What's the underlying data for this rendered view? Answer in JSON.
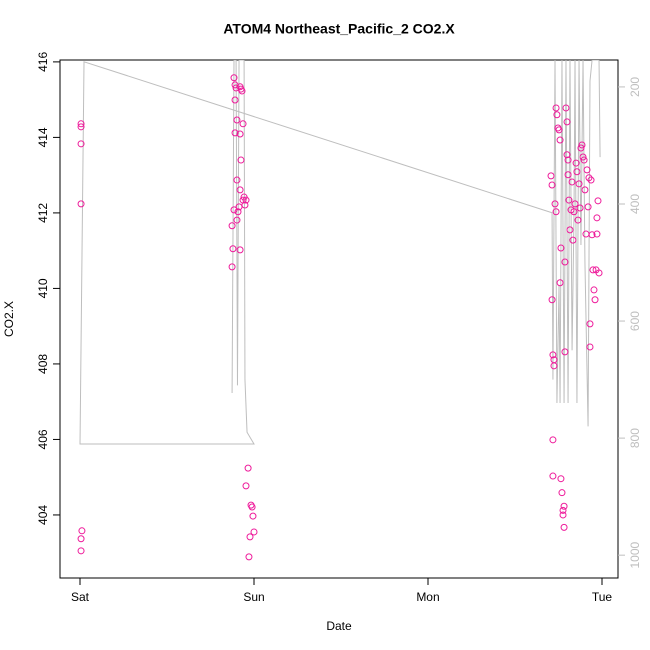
{
  "chart_data": {
    "type": "scatter",
    "title": "ATOM4 Northeast_Pacific_2 CO2.X",
    "x_label": "Date",
    "y_label": "CO2.X",
    "xlim": [
      -0.115,
      3.092
    ],
    "xticks": [
      {
        "value": 0,
        "label": "Sat"
      },
      {
        "value": 1,
        "label": "Sun"
      },
      {
        "value": 2,
        "label": "Mon"
      },
      {
        "value": 3,
        "label": "Tue"
      }
    ],
    "ylim": [
      402.33,
      416.05
    ],
    "yticks": [
      404,
      406,
      408,
      410,
      412,
      414,
      416
    ],
    "y2lim": [
      1039,
      154
    ],
    "y2ticks": [
      200,
      400,
      600,
      800,
      1000
    ],
    "series": [
      {
        "type": "scatter",
        "color": "#ee1a9a",
        "x": [
          0.006,
          0.006,
          0.006,
          0.006,
          0.011,
          0.006,
          0.006,
          0.885,
          0.891,
          0.897,
          0.92,
          0.925,
          0.931,
          0.891,
          0.902,
          0.937,
          0.891,
          0.92,
          0.925,
          0.902,
          0.92,
          0.885,
          0.908,
          0.937,
          0.948,
          0.943,
          0.874,
          0.879,
          0.92,
          0.874,
          0.902,
          0.914,
          0.954,
          0.966,
          0.954,
          0.983,
          0.989,
          0.994,
          0.977,
          1.0,
          0.971,
          2.713,
          2.718,
          2.724,
          2.724,
          2.718,
          2.718,
          2.707,
          2.713,
          2.73,
          2.736,
          2.736,
          2.741,
          2.747,
          2.753,
          2.759,
          2.759,
          2.764,
          2.764,
          2.77,
          2.776,
          2.776,
          2.782,
          2.782,
          2.787,
          2.787,
          2.793,
          2.799,
          2.799,
          2.805,
          2.805,
          2.81,
          2.816,
          2.822,
          2.828,
          2.833,
          2.839,
          2.845,
          2.851,
          2.856,
          2.862,
          2.868,
          2.874,
          2.879,
          2.885,
          2.891,
          2.897,
          2.902,
          2.908,
          2.914,
          2.92,
          2.925,
          2.931,
          2.931,
          2.937,
          2.943,
          2.948,
          2.954,
          2.96,
          2.966,
          2.971,
          2.977,
          2.983,
          2.971
        ],
        "values": [
          414.36,
          414.28,
          413.83,
          412.24,
          403.58,
          403.37,
          403.05,
          415.58,
          415.39,
          415.31,
          415.34,
          415.28,
          415.23,
          414.99,
          414.46,
          414.36,
          414.12,
          414.09,
          413.4,
          412.87,
          412.61,
          412.08,
          412.03,
          412.34,
          412.21,
          412.42,
          411.66,
          411.05,
          411.02,
          410.57,
          411.81,
          412.16,
          412.34,
          405.24,
          404.77,
          404.26,
          404.21,
          403.97,
          403.42,
          403.55,
          402.89,
          409.7,
          408.24,
          408.11,
          407.95,
          405.99,
          405.03,
          412.98,
          412.74,
          412.24,
          412.03,
          414.78,
          414.6,
          414.25,
          414.2,
          413.93,
          410.15,
          411.07,
          404.96,
          404.59,
          404.12,
          404.0,
          404.23,
          403.67,
          410.7,
          408.32,
          414.78,
          414.41,
          413.54,
          413.4,
          413.01,
          412.34,
          411.55,
          412.08,
          412.82,
          411.28,
          412.03,
          412.24,
          413.32,
          413.09,
          411.81,
          412.77,
          412.13,
          413.72,
          413.8,
          413.48,
          413.4,
          412.61,
          411.44,
          413.14,
          412.16,
          412.93,
          408.45,
          409.06,
          412.87,
          411.42,
          410.49,
          409.96,
          409.7,
          410.49,
          411.44,
          412.32,
          410.41,
          411.87
        ]
      },
      {
        "type": "line",
        "axis": "y2",
        "color": "#bebebe",
        "x": [
          0.874,
          0.885,
          0.897,
          0.905,
          0.914,
          0.943,
          0.948,
          0.96,
          1.0,
          0.0,
          0.023,
          2.713,
          2.718,
          2.73,
          2.741,
          2.753,
          2.759,
          2.77,
          2.782,
          2.793,
          2.805,
          2.816,
          2.828,
          2.839,
          2.845,
          2.856,
          2.868,
          2.879,
          2.891,
          2.902,
          2.92,
          2.931,
          2.943,
          2.983,
          2.989
        ],
        "values": [
          723,
          154,
          154,
          710,
          154,
          154,
          700,
          790,
          810,
          810,
          157,
          415,
          700,
          154,
          740,
          540,
          740,
          154,
          740,
          154,
          740,
          154,
          650,
          420,
          154,
          740,
          154,
          470,
          154,
          500,
          780,
          190,
          154,
          154,
          320
        ]
      }
    ]
  }
}
